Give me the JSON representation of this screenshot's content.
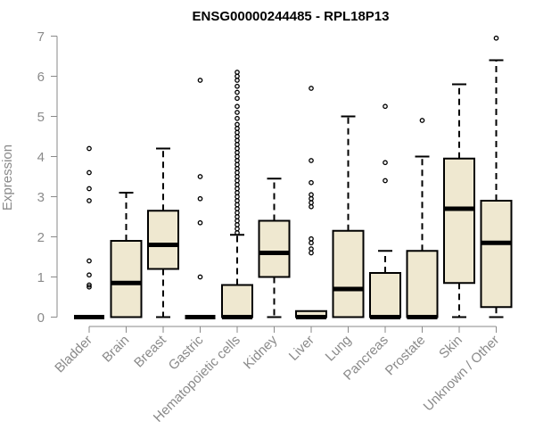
{
  "chart_data": {
    "type": "boxplot",
    "title": "ENSG00000244485 - RPL18P13",
    "ylabel": "Expression",
    "xlabel": "",
    "ylim": [
      0,
      7
    ],
    "yticks": [
      0,
      1,
      2,
      3,
      4,
      5,
      6,
      7
    ],
    "grid": false,
    "colors": {
      "box_fill": "#efe8d0",
      "box_stroke": "#000000",
      "axis": "#8a8a8a"
    },
    "categories": [
      "Bladder",
      "Brain",
      "Breast",
      "Gastric",
      "Hematopoietic cells",
      "Kidney",
      "Liver",
      "Lung",
      "Pancreas",
      "Prostate",
      "Skin",
      "Unknown / Other"
    ],
    "boxes": [
      {
        "category": "Bladder",
        "q1": 0,
        "median": 0,
        "q3": 0,
        "whisker_low": 0,
        "whisker_high": 0,
        "outliers": [
          0.75,
          0.8,
          1.05,
          1.4,
          2.9,
          3.2,
          3.6,
          4.2
        ]
      },
      {
        "category": "Brain",
        "q1": 0,
        "median": 0.85,
        "q3": 1.9,
        "whisker_low": 0,
        "whisker_high": 3.1,
        "outliers": []
      },
      {
        "category": "Breast",
        "q1": 1.2,
        "median": 1.8,
        "q3": 2.65,
        "whisker_low": 0,
        "whisker_high": 4.2,
        "outliers": []
      },
      {
        "category": "Gastric",
        "q1": 0,
        "median": 0,
        "q3": 0,
        "whisker_low": 0,
        "whisker_high": 0,
        "outliers": [
          1.0,
          2.35,
          2.95,
          3.5,
          5.9
        ]
      },
      {
        "category": "Hematopoietic cells",
        "q1": 0,
        "median": 0,
        "q3": 0.8,
        "whisker_low": 0,
        "whisker_high": 2.05,
        "outliers": [
          2.1,
          2.2,
          2.3,
          2.4,
          2.5,
          2.6,
          2.7,
          2.8,
          2.9,
          3.0,
          3.1,
          3.2,
          3.3,
          3.4,
          3.5,
          3.6,
          3.7,
          3.8,
          3.9,
          4.0,
          4.1,
          4.2,
          4.3,
          4.4,
          4.5,
          4.6,
          4.7,
          4.8,
          4.95,
          5.1,
          5.25,
          5.45,
          5.6,
          5.75,
          5.9,
          6.0,
          6.1
        ]
      },
      {
        "category": "Kidney",
        "q1": 1.0,
        "median": 1.6,
        "q3": 2.4,
        "whisker_low": 0,
        "whisker_high": 3.45,
        "outliers": []
      },
      {
        "category": "Liver",
        "q1": 0,
        "median": 0,
        "q3": 0.15,
        "whisker_low": 0,
        "whisker_high": 0.15,
        "outliers": [
          1.6,
          1.7,
          1.85,
          1.95,
          2.75,
          2.85,
          2.95,
          3.05,
          3.35,
          3.9,
          5.7
        ]
      },
      {
        "category": "Lung",
        "q1": 0,
        "median": 0.7,
        "q3": 2.15,
        "whisker_low": 0,
        "whisker_high": 5.0,
        "outliers": []
      },
      {
        "category": "Pancreas",
        "q1": 0,
        "median": 0,
        "q3": 1.1,
        "whisker_low": 0,
        "whisker_high": 1.65,
        "outliers": [
          3.4,
          3.85,
          5.25
        ]
      },
      {
        "category": "Prostate",
        "q1": 0,
        "median": 0,
        "q3": 1.65,
        "whisker_low": 0,
        "whisker_high": 4.0,
        "outliers": [
          4.9
        ]
      },
      {
        "category": "Skin",
        "q1": 0.85,
        "median": 2.7,
        "q3": 3.95,
        "whisker_low": 0,
        "whisker_high": 5.8,
        "outliers": []
      },
      {
        "category": "Unknown / Other",
        "q1": 0.25,
        "median": 1.85,
        "q3": 2.9,
        "whisker_low": 0,
        "whisker_high": 6.4,
        "outliers": [
          6.95
        ]
      }
    ]
  }
}
